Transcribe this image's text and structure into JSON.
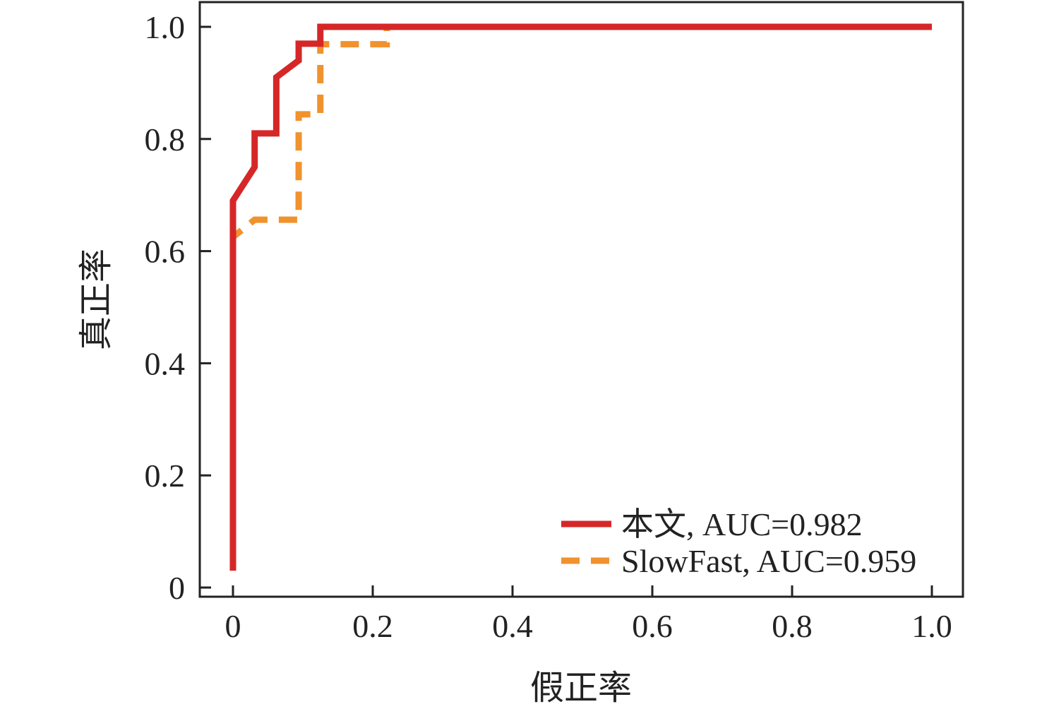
{
  "chart_data": {
    "type": "line",
    "title": "",
    "xlabel": "假正率",
    "ylabel": "真正率",
    "xlim": [
      0,
      1.0
    ],
    "ylim": [
      0,
      1.0
    ],
    "xticks": [
      0,
      0.2,
      0.4,
      0.6,
      0.8,
      1.0
    ],
    "xtick_labels": [
      "0",
      "0.2",
      "0.4",
      "0.6",
      "0.8",
      "1.0"
    ],
    "yticks": [
      0,
      0.2,
      0.4,
      0.6,
      0.8,
      1.0
    ],
    "ytick_labels": [
      "0",
      "0.2",
      "0.4",
      "0.6",
      "0.8",
      "1.0"
    ],
    "grid": false,
    "legend_position": "bottom-right",
    "series": [
      {
        "name": "本文, AUC=0.982",
        "color": "#d62728",
        "style": "solid",
        "x": [
          0,
          0,
          0.031,
          0.031,
          0.062,
          0.062,
          0.094,
          0.094,
          0.125,
          0.125,
          0.25,
          1.0
        ],
        "y": [
          0.03,
          0.69,
          0.75,
          0.81,
          0.81,
          0.91,
          0.94,
          0.97,
          0.97,
          1.0,
          1.0,
          1.0
        ]
      },
      {
        "name": "SlowFast, AUC=0.959",
        "color": "#f0922e",
        "style": "dashed",
        "x": [
          0,
          0,
          0.031,
          0.094,
          0.094,
          0.125,
          0.125,
          0.22,
          0.22,
          1.0
        ],
        "y": [
          0.03,
          0.625,
          0.656,
          0.656,
          0.844,
          0.844,
          0.969,
          0.969,
          1.0,
          1.0
        ]
      }
    ]
  }
}
